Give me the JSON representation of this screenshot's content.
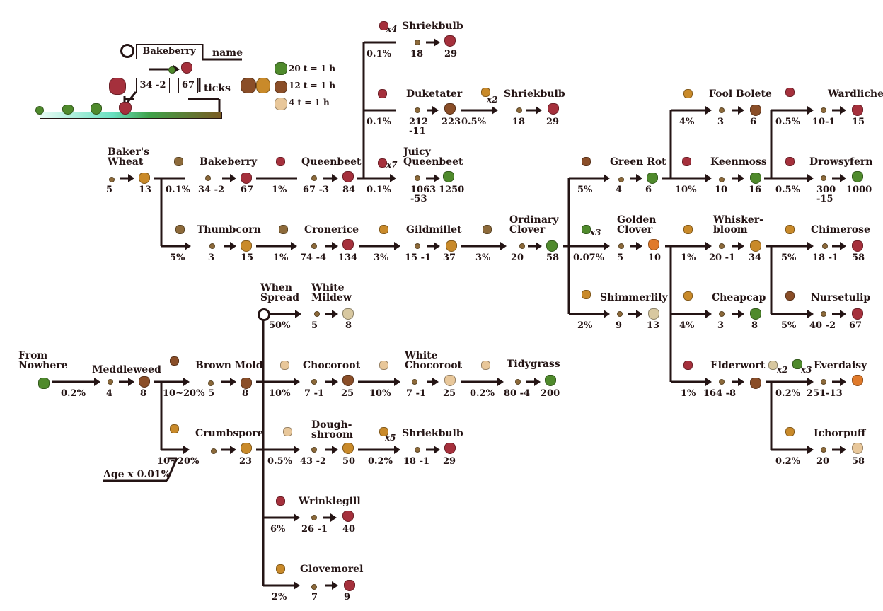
{
  "legend": {
    "name_example": "Bakeberry",
    "name_caption": "name",
    "ticks_seed": "34 -2",
    "ticks_mature": "67",
    "ticks_caption": "ticks",
    "rates": [
      "20 t = 1 h",
      "12 t = 1 h",
      "4 t = 1 h"
    ],
    "age_note": "Age x 0.01%"
  },
  "colors": {
    "line": "#241414",
    "seed": "#8d6a3a",
    "plant": "#6a2a2a",
    "fungus": "#7a4a3a",
    "green": "#4f8a2c",
    "red": "#a5303c",
    "brown": "#8a4e28",
    "gold": "#c98a2a"
  },
  "nodes": {
    "bakers_wheat": {
      "name": "Baker's\nWheat",
      "seed": "5",
      "mature": "13"
    },
    "bakeberry": {
      "name": "Bakeberry",
      "pct": "0.1%",
      "seed": "34 -2",
      "mature": "67"
    },
    "queenbeet": {
      "name": "Queenbeet",
      "pct": "1%",
      "seed": "67 -3",
      "mature": "84"
    },
    "shriekbulb_a": {
      "name": "Shriekbulb",
      "mult": "x4",
      "pct": "0.1%",
      "seed": "18",
      "mature": "29"
    },
    "duketater": {
      "name": "Duketater",
      "pct": "0.1%",
      "seed": "212\n-11",
      "mature": "223"
    },
    "shriekbulb_b": {
      "name": "Shriekbulb",
      "mult": "x2",
      "pct": "0.5%",
      "seed": "18",
      "mature": "29"
    },
    "juicy_queenbeet": {
      "name": "Juicy\nQueenbeet",
      "mult": "x7",
      "pct": "0.1%",
      "seed": "1063\n-53",
      "mature": "1250"
    },
    "thumbcorn": {
      "name": "Thumbcorn",
      "pct": "5%",
      "seed": "3",
      "mature": "15"
    },
    "cronerice": {
      "name": "Cronerice",
      "pct": "1%",
      "seed": "74 -4",
      "mature": "134"
    },
    "gildmillet": {
      "name": "Gildmillet",
      "pct": "3%",
      "seed": "15 -1",
      "mature": "37"
    },
    "ordinary_clover": {
      "name": "Ordinary\nClover",
      "pct": "3%",
      "seed": "20",
      "mature": "58"
    },
    "green_rot": {
      "name": "Green Rot",
      "pct": "5%",
      "seed": "4",
      "mature": "6"
    },
    "golden_clover": {
      "name": "Golden\nClover",
      "mult": "x3",
      "pct": "0.07%",
      "seed": "5",
      "mature": "10"
    },
    "shimmerlily": {
      "name": "Shimmerlily",
      "pct": "2%",
      "seed": "9",
      "mature": "13"
    },
    "fool_bolete": {
      "name": "Fool Bolete",
      "pct": "4%",
      "seed": "3",
      "mature": "6"
    },
    "keenmoss": {
      "name": "Keenmoss",
      "pct": "10%",
      "seed": "10",
      "mature": "16"
    },
    "wardlichen": {
      "name": "Wardlichen",
      "pct": "0.5%",
      "seed": "10-1",
      "mature": "15"
    },
    "drowsyfern": {
      "name": "Drowsyfern",
      "pct": "0.5%",
      "seed": "300\n-15",
      "mature": "1000"
    },
    "whiskerbloom": {
      "name": "Whisker-\nbloom",
      "pct": "1%",
      "seed": "20 -1",
      "mature": "34"
    },
    "chimerose": {
      "name": "Chimerose",
      "pct": "5%",
      "seed": "18 -1",
      "mature": "58"
    },
    "cheapcap": {
      "name": "Cheapcap",
      "pct": "4%",
      "seed": "3",
      "mature": "8"
    },
    "nursetulip": {
      "name": "Nursetulip",
      "pct": "5%",
      "seed": "40 -2",
      "mature": "67"
    },
    "elderwort": {
      "name": "Elderwort",
      "pct": "1%",
      "seed": "164 -8",
      "mature": ""
    },
    "everdaisy": {
      "name": "Everdaisy",
      "mult": "x2",
      "mult2": "x3",
      "pct": "0.2%",
      "seed": "251-13",
      "mature": ""
    },
    "ichorpuff": {
      "name": "Ichorpuff",
      "pct": "0.2%",
      "seed": "20",
      "mature": "58"
    },
    "from_nowhere": {
      "name": "From\nNowhere"
    },
    "meddleweed": {
      "name": "Meddleweed",
      "pct": "0.2%",
      "seed": "4",
      "mature": "8"
    },
    "when_spread": {
      "name": "When\nSpread"
    },
    "white_mildew": {
      "name": "White\nMildew",
      "pct": "50%",
      "seed": "5",
      "mature": "8"
    },
    "brown_mold": {
      "name": "Brown Mold",
      "pct": "10~20%",
      "seed": "5",
      "mature": "8"
    },
    "chocoroot": {
      "name": "Chocoroot",
      "pct": "10%",
      "seed": "7 -1",
      "mature": "25"
    },
    "white_chocoroot": {
      "name": "White\nChocoroot",
      "pct": "10%",
      "seed": "7 -1",
      "mature": "25"
    },
    "tidygrass": {
      "name": "Tidygrass",
      "pct": "0.2%",
      "seed": "80 -4",
      "mature": "200"
    },
    "crumbspore": {
      "name": "Crumbspore",
      "pct": "10~20%",
      "seed": "",
      "mature": "23"
    },
    "doughshroom": {
      "name": "Dough-\nshroom",
      "pct": "0.5%",
      "seed": "43 -2",
      "mature": "50"
    },
    "shriekbulb_c": {
      "name": "Shriekbulb",
      "mult": "x5",
      "pct": "0.2%",
      "seed": "18 -1",
      "mature": "29"
    },
    "wrinklegill": {
      "name": "Wrinklegill",
      "pct": "6%",
      "seed": "26 -1",
      "mature": "40"
    },
    "glovemorel": {
      "name": "Glovemorel",
      "pct": "2%",
      "seed": "7",
      "mature": "9"
    }
  }
}
